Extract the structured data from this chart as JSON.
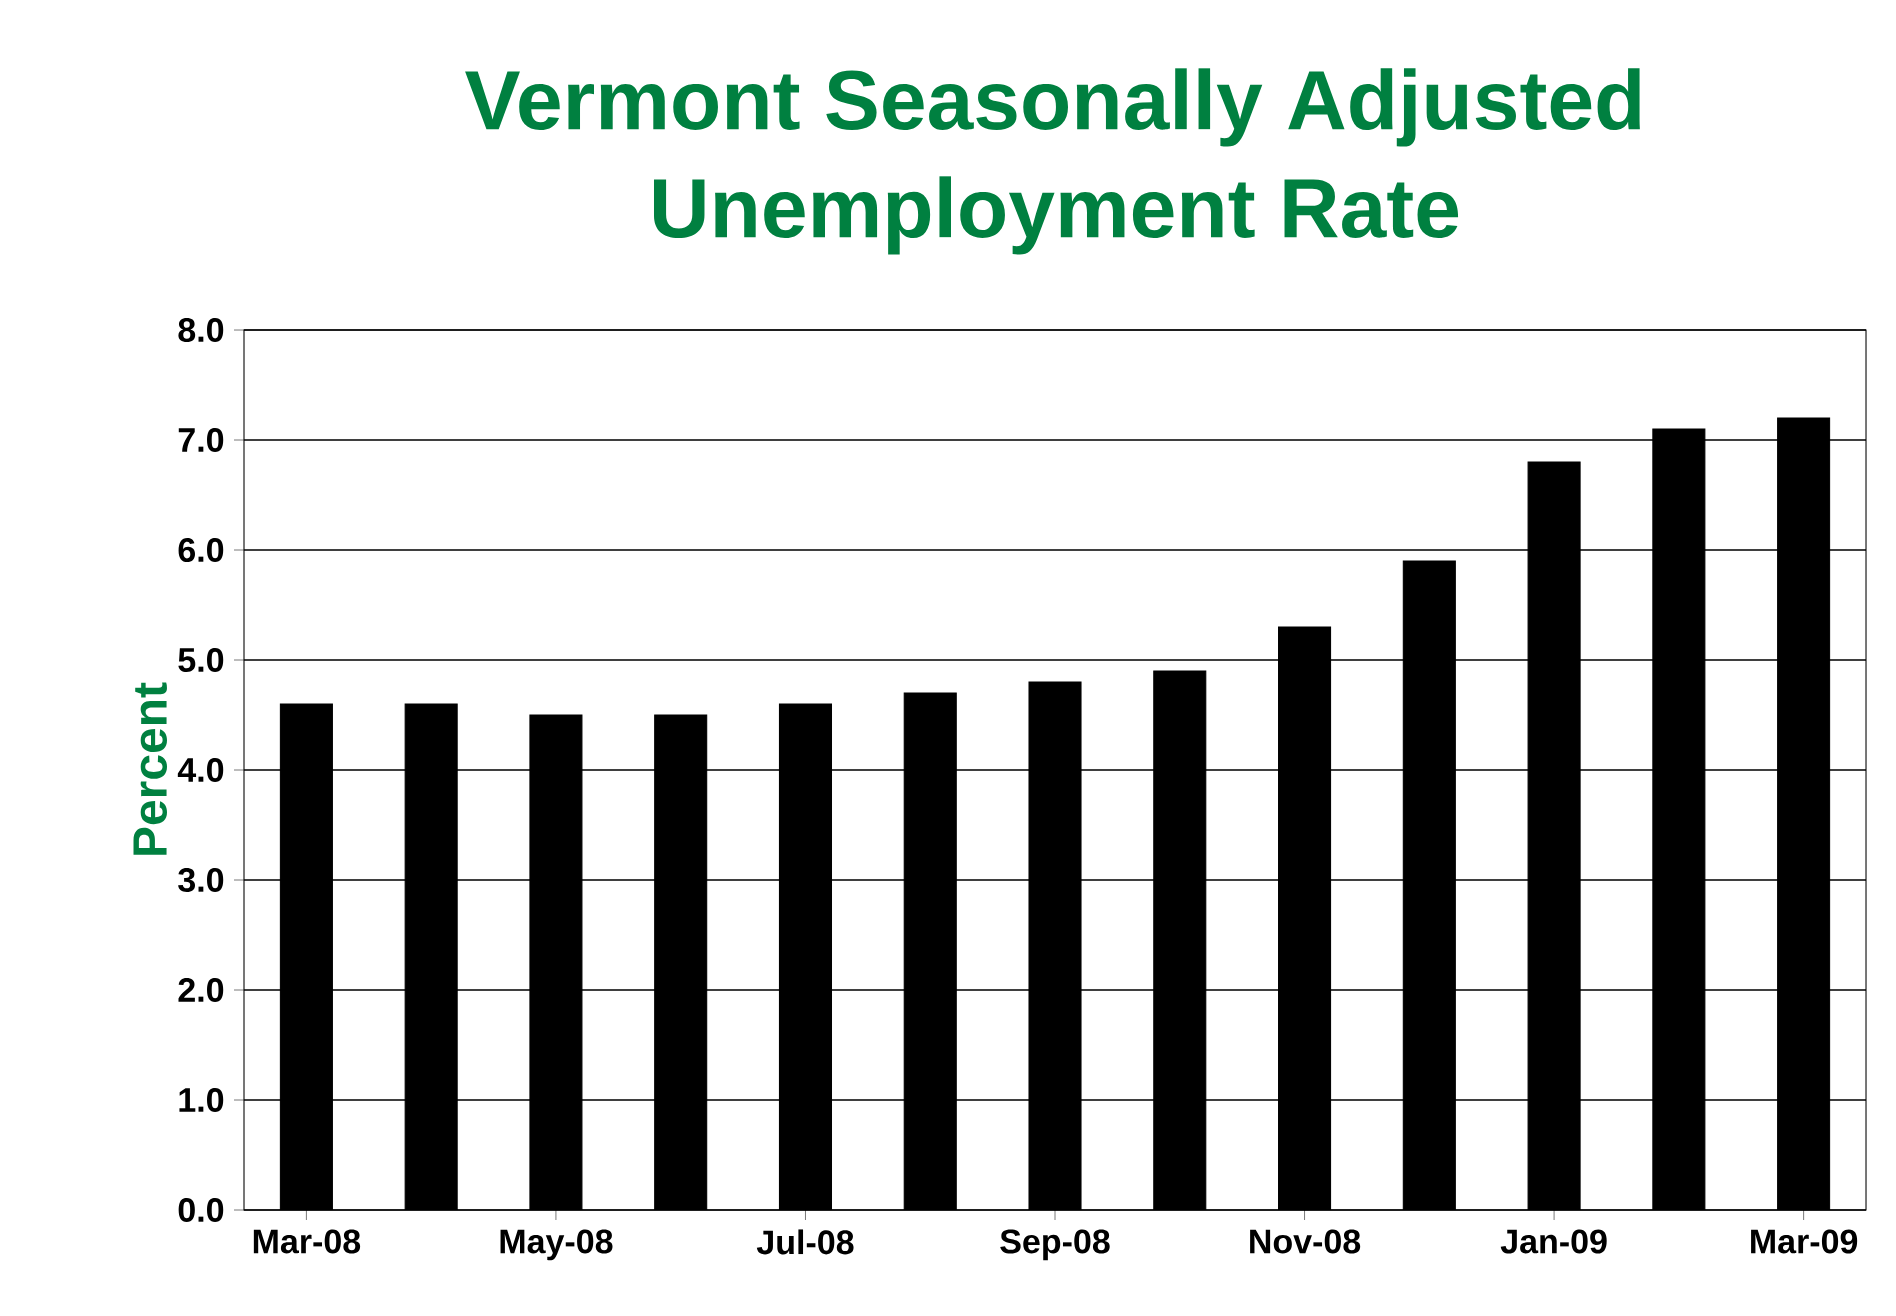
{
  "chart_data": {
    "type": "bar",
    "title": "Vermont Seasonally Adjusted\nUnemployment Rate",
    "ylabel": "Percent",
    "categories": [
      "Mar-08",
      null,
      "May-08",
      null,
      "Jul-08",
      null,
      "Sep-08",
      null,
      "Nov-08",
      null,
      "Jan-09",
      null,
      "Mar-09"
    ],
    "values": [
      4.6,
      4.6,
      4.5,
      4.5,
      4.6,
      4.7,
      4.8,
      4.9,
      5.3,
      5.9,
      6.8,
      7.1,
      7.2
    ],
    "color": "#000000",
    "ylim": [
      0,
      8
    ],
    "yticks": [
      {
        "value": 0,
        "label": "0.0"
      },
      {
        "value": 1,
        "label": "1.0"
      },
      {
        "value": 2,
        "label": "2.0"
      },
      {
        "value": 3,
        "label": "3.0"
      },
      {
        "value": 4,
        "label": "4.0"
      },
      {
        "value": 5,
        "label": "5.0"
      },
      {
        "value": 6,
        "label": "6.0"
      },
      {
        "value": 7,
        "label": "7.0"
      },
      {
        "value": 8,
        "label": "8.0"
      }
    ],
    "grid": "y"
  }
}
